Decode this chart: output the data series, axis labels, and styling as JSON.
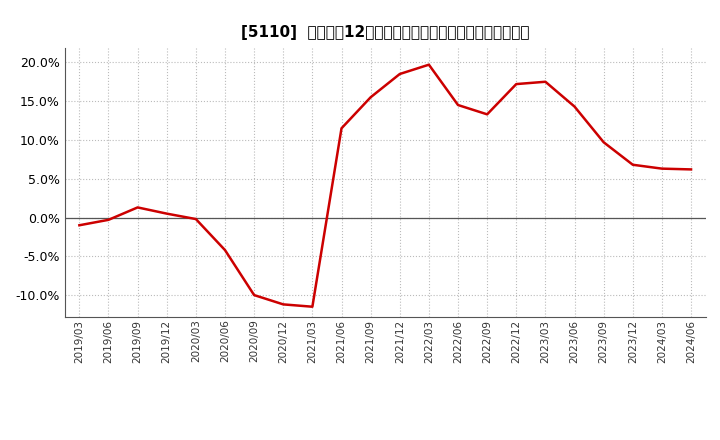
{
  "title": "[5110]  売上高の12か月移動合計の対前年同期増減率の推移",
  "line_color": "#cc0000",
  "background_color": "#ffffff",
  "grid_color": "#aaaaaa",
  "ylim": [
    -0.128,
    0.218
  ],
  "yticks": [
    -0.1,
    -0.05,
    0.0,
    0.05,
    0.1,
    0.15,
    0.2
  ],
  "dates": [
    "2019/03",
    "2019/06",
    "2019/09",
    "2019/12",
    "2020/03",
    "2020/06",
    "2020/09",
    "2020/12",
    "2021/03",
    "2021/06",
    "2021/09",
    "2021/12",
    "2022/03",
    "2022/06",
    "2022/09",
    "2022/12",
    "2023/03",
    "2023/06",
    "2023/09",
    "2023/12",
    "2024/03",
    "2024/06"
  ],
  "values": [
    -0.01,
    -0.003,
    0.013,
    0.005,
    -0.002,
    -0.042,
    -0.1,
    -0.112,
    -0.115,
    0.115,
    0.155,
    0.185,
    0.197,
    0.145,
    0.133,
    0.172,
    0.175,
    0.143,
    0.097,
    0.068,
    0.063,
    0.062
  ]
}
